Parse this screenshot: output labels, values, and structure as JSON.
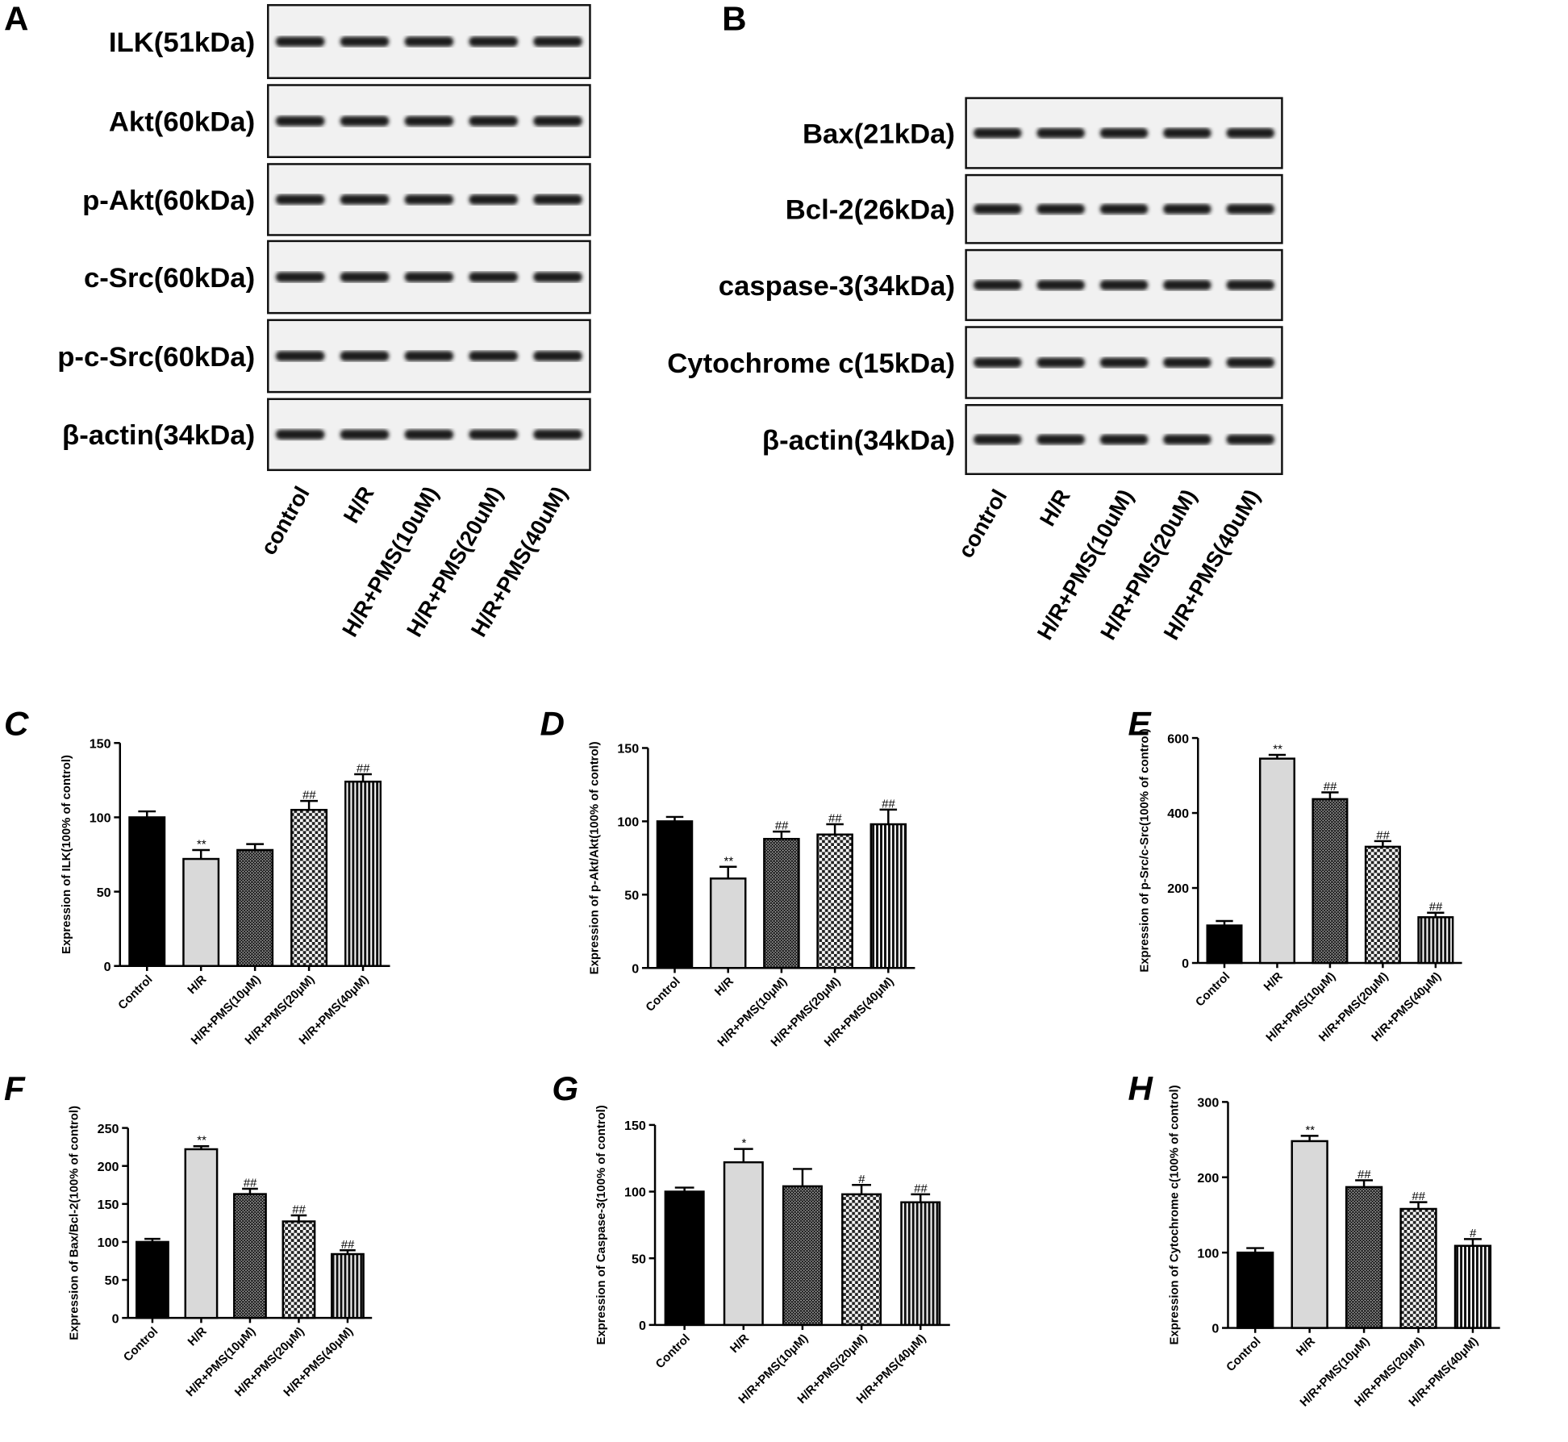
{
  "blots": [
    {
      "panel_label": "A",
      "rows": [
        "ILK(51kDa)",
        "Akt(60kDa)",
        "p-Akt(60kDa)",
        "c-Src(60kDa)",
        "p-c-Src(60kDa)",
        "β-actin(34kDa)"
      ],
      "lanes": [
        "control",
        "H/R",
        "H/R+PMS(10uM)",
        "H/R+PMS(20uM)",
        "H/R+PMS(40uM)"
      ]
    },
    {
      "panel_label": "B",
      "rows": [
        "Bax(21kDa)",
        "Bcl-2(26kDa)",
        "caspase-3(34kDa)",
        "Cytochrome c(15kDa)",
        "β-actin(34kDa)"
      ],
      "lanes": [
        "control",
        "H/R",
        "H/R+PMS(10uM)",
        "H/R+PMS(20uM)",
        "H/R+PMS(40uM)"
      ]
    }
  ],
  "chart_data": [
    {
      "type": "bar",
      "panel_label": "C",
      "y_label": "Expression of ILK(100% of control)",
      "categories": [
        "Control",
        "H/R",
        "H/R+PMS(10μM)",
        "H/R+PMS(20μM)",
        "H/R+PMS(40μM)"
      ],
      "values": [
        100,
        72,
        78,
        105,
        124
      ],
      "errors": [
        4,
        6,
        4,
        6,
        5
      ],
      "annotations": [
        null,
        "**",
        null,
        "##",
        "##"
      ],
      "ylim": [
        0,
        150
      ],
      "yticks": [
        0,
        50,
        100,
        150
      ]
    },
    {
      "type": "bar",
      "panel_label": "D",
      "y_label": "Expression of p-Akt/Akt(100% of control)",
      "categories": [
        "Control",
        "H/R",
        "H/R+PMS(10μM)",
        "H/R+PMS(20μM)",
        "H/R+PMS(40μM)"
      ],
      "values": [
        100,
        61,
        88,
        91,
        98
      ],
      "errors": [
        3,
        8,
        5,
        7,
        10
      ],
      "annotations": [
        null,
        "**",
        "##",
        "##",
        "##"
      ],
      "ylim": [
        0,
        150
      ],
      "yticks": [
        0,
        50,
        100,
        150
      ]
    },
    {
      "type": "bar",
      "panel_label": "E",
      "y_label": "Expression of p-Src/c-Src(100% of control)",
      "categories": [
        "Control",
        "H/R",
        "H/R+PMS(10μM)",
        "H/R+PMS(20μM)",
        "H/R+PMS(40μM)"
      ],
      "values": [
        100,
        545,
        437,
        310,
        122
      ],
      "errors": [
        12,
        10,
        18,
        15,
        12
      ],
      "annotations": [
        null,
        "**",
        "##",
        "##",
        "##"
      ],
      "ylim": [
        0,
        600
      ],
      "yticks": [
        0,
        200,
        400,
        600
      ]
    },
    {
      "type": "bar",
      "panel_label": "F",
      "y_label": "Expression of Bax/Bcl-2(100% of control)",
      "categories": [
        "Control",
        "H/R",
        "H/R+PMS(10μM)",
        "H/R+PMS(20μM)",
        "H/R+PMS(40μM)"
      ],
      "values": [
        100,
        222,
        163,
        127,
        84
      ],
      "errors": [
        4,
        4,
        7,
        8,
        5
      ],
      "annotations": [
        null,
        "**",
        "##",
        "##",
        "##"
      ],
      "ylim": [
        0,
        250
      ],
      "yticks": [
        0,
        50,
        100,
        150,
        200,
        250
      ]
    },
    {
      "type": "bar",
      "panel_label": "G",
      "y_label": "Expression of Caspase-3(100% of control)",
      "categories": [
        "Control",
        "H/R",
        "H/R+PMS(10μM)",
        "H/R+PMS(20μM)",
        "H/R+PMS(40μM)"
      ],
      "values": [
        100,
        122,
        104,
        98,
        92
      ],
      "errors": [
        3,
        10,
        13,
        7,
        6
      ],
      "annotations": [
        null,
        "*",
        null,
        "#",
        "##"
      ],
      "ylim": [
        0,
        150
      ],
      "yticks": [
        0,
        50,
        100,
        150
      ]
    },
    {
      "type": "bar",
      "panel_label": "H",
      "y_label": "Expression of Cytochrome c(100% of control)",
      "categories": [
        "Control",
        "H/R",
        "H/R+PMS(10μM)",
        "H/R+PMS(20μM)",
        "H/R+PMS(40μM)"
      ],
      "values": [
        100,
        248,
        187,
        158,
        109
      ],
      "errors": [
        6,
        7,
        9,
        9,
        9
      ],
      "annotations": [
        null,
        "**",
        "##",
        "##",
        "#"
      ],
      "ylim": [
        0,
        300
      ],
      "yticks": [
        0,
        100,
        200,
        300
      ]
    }
  ]
}
